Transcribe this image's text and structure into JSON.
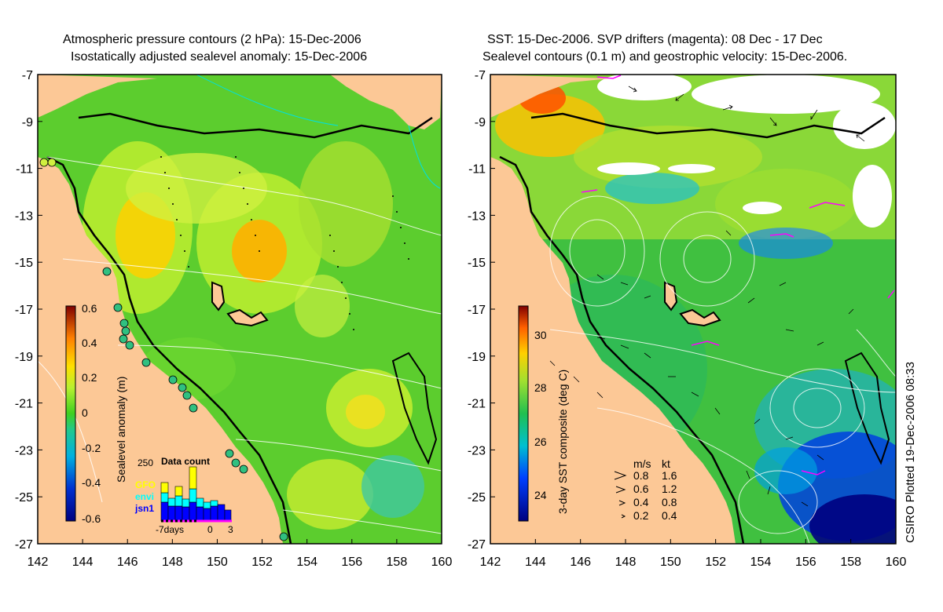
{
  "left_panel": {
    "title_line1": "Atmospheric pressure contours (2 hPa): 15-Dec-2006",
    "title_line2": "Isostatically adjusted sealevel anomaly: 15-Dec-2006",
    "colorbar_label": "Sealevel anomaly (m)",
    "colorbar_ticks": [
      "0.6",
      "0.4",
      "0.2",
      "0",
      "-0.2",
      "-0.4",
      "-0.6"
    ],
    "data_count": {
      "title": "Data count",
      "max_label": "250",
      "satellites": [
        {
          "name": "GFO",
          "color": "#ffff00"
        },
        {
          "name": "envi",
          "color": "#00ffff"
        },
        {
          "name": "jsn1",
          "color": "#0000ff"
        }
      ],
      "axis_labels": [
        "-7days",
        "0",
        "3"
      ]
    }
  },
  "right_panel": {
    "title_line1": "SST: 15-Dec-2006. SVP drifters (magenta): 08 Dec - 17 Dec",
    "title_line2": "Sealevel contours (0.1 m) and geostrophic velocity: 15-Dec-2006.",
    "colorbar_label": "3-day SST composite (deg C)",
    "colorbar_ticks": [
      "30",
      "28",
      "26",
      "24"
    ],
    "velocity_legend": {
      "header_ms": "m/s",
      "header_kt": "kt",
      "rows": [
        {
          "ms": "0.8",
          "kt": "1.6"
        },
        {
          "ms": "0.6",
          "kt": "1.2"
        },
        {
          "ms": "0.4",
          "kt": "0.8"
        },
        {
          "ms": "0.2",
          "kt": "0.4"
        }
      ]
    }
  },
  "lat_ticks": [
    "-7",
    "-9",
    "-11",
    "-13",
    "-15",
    "-17",
    "-19",
    "-21",
    "-23",
    "-25",
    "-27"
  ],
  "lon_ticks": [
    "142",
    "144",
    "146",
    "148",
    "150",
    "152",
    "154",
    "156",
    "158",
    "160"
  ],
  "credit": "CSIRO Plotted 19-Dec-2006 08:33",
  "colors": {
    "land": "#fcc896",
    "ocean_base": "#5ccd2e"
  }
}
